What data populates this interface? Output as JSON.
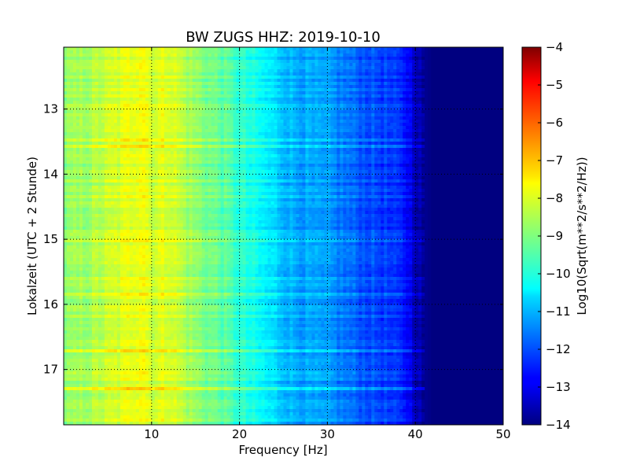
{
  "chart_data": {
    "type": "heatmap",
    "title": "BW ZUGS HHZ: 2019-10-10",
    "xlabel": "Frequency [Hz]",
    "ylabel": "Lokalzeit (UTC + 2 Stunde)",
    "colorbar_label": "Log10(Sqrt(m**2/s**2/Hz))",
    "colormap": "jet",
    "xlim": [
      0,
      50
    ],
    "ylim": [
      12.05,
      17.85
    ],
    "y_inverted": true,
    "x_ticks": [
      10,
      20,
      30,
      40,
      50
    ],
    "y_ticks": [
      13,
      14,
      15,
      16,
      17
    ],
    "colorbar_range": [
      -14,
      -4
    ],
    "colorbar_ticks": [
      -14,
      -13,
      -12,
      -11,
      -10,
      -9,
      -8,
      -7,
      -6,
      -5,
      -4
    ],
    "grid": true,
    "frequency_profile": {
      "frequency_hz": [
        0,
        3,
        6,
        8,
        9,
        10,
        12,
        14,
        16,
        18,
        20,
        22,
        24,
        26,
        28,
        30,
        32,
        34,
        36,
        38,
        39,
        40,
        41,
        42,
        43,
        45,
        50
      ],
      "log10_psd": [
        -8.9,
        -8.6,
        -8.2,
        -7.9,
        -7.7,
        -8.2,
        -8.0,
        -8.6,
        -9.0,
        -9.3,
        -9.8,
        -10.2,
        -10.6,
        -11.0,
        -11.2,
        -11.3,
        -11.6,
        -11.9,
        -12.1,
        -12.4,
        -12.6,
        -13.3,
        -13.8,
        -14.0,
        -14.0,
        -14.0,
        -14.0
      ]
    }
  }
}
